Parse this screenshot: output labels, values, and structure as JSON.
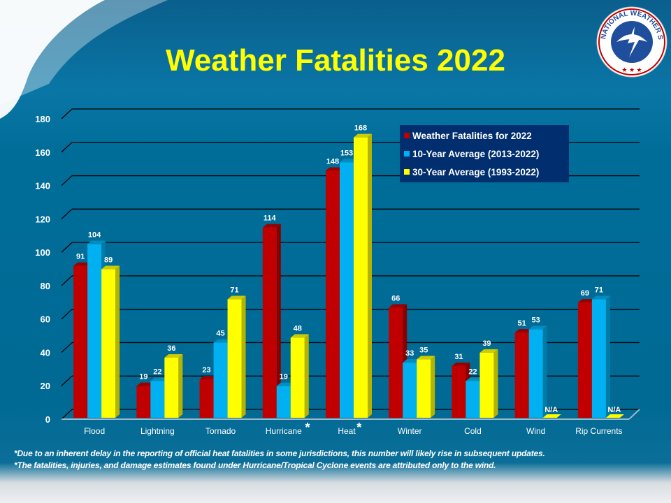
{
  "title": "Weather Fatalities 2022",
  "logo_text": "NATIONAL WEATHER SERVICE",
  "notes": [
    "*Due to an inherent delay in the reporting of official heat fatalities in some jurisdictions, this number will likely rise in subsequent updates.",
    "*The fatalities, injuries, and damage estimates found under Hurricane/Tropical Cyclone events are attributed only to the wind."
  ],
  "chart_data": {
    "type": "bar",
    "title": "Weather Fatalities 2022",
    "categories": [
      "Flood",
      "Lightning",
      "Tornado",
      "Hurricane",
      "Heat",
      "Winter",
      "Cold",
      "Wind",
      "Rip Currents"
    ],
    "category_markers": [
      "",
      "",
      "",
      "*",
      "*",
      "",
      "",
      "",
      ""
    ],
    "series": [
      {
        "name": "Weather Fatalities for 2022",
        "color": "#c00000",
        "values": [
          91,
          19,
          23,
          114,
          148,
          66,
          31,
          51,
          69
        ]
      },
      {
        "name": "10-Year Average (2013-2022)",
        "color": "#00b0f0",
        "values": [
          104,
          22,
          45,
          19,
          153,
          33,
          22,
          53,
          71
        ]
      },
      {
        "name": "30-Year Average (1993-2022)",
        "color": "#ffff00",
        "values": [
          89,
          36,
          71,
          48,
          168,
          35,
          39,
          null,
          null
        ]
      }
    ],
    "na_label": "N/A",
    "ylim": [
      0,
      180
    ],
    "yticks": [
      0,
      20,
      40,
      60,
      80,
      100,
      120,
      140,
      160,
      180
    ],
    "grid": true,
    "legend": "top-right"
  }
}
